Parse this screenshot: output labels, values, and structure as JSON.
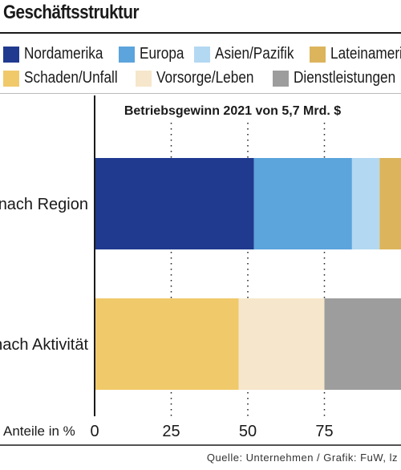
{
  "header": {
    "title": "Geschäftsstruktur"
  },
  "legend": {
    "row1": [
      {
        "label": "Nordamerika",
        "color": "#1f3a8f"
      },
      {
        "label": "Europa",
        "color": "#5ba4dc"
      },
      {
        "label": "Asien/Pazifik",
        "color": "#b3d8f2"
      },
      {
        "label": "Lateinamerika",
        "color": "#dbb45c"
      }
    ],
    "row2": [
      {
        "label": "Schaden/Unfall",
        "color": "#f0c96a"
      },
      {
        "label": "Vorsorge/Leben",
        "color": "#f6e6cb"
      },
      {
        "label": "Dienstleistungen",
        "color": "#9d9d9d"
      }
    ]
  },
  "chart_data": {
    "type": "bar",
    "orientation": "horizontal",
    "stacked": true,
    "title": "Betriebsgewinn 2021 von 5,7 Mrd. $",
    "xlabel": "Anteile in %",
    "xlim": [
      0,
      100
    ],
    "xticks": [
      0,
      25,
      50,
      75
    ],
    "grid": "dotted vertical at 25, 50, 75",
    "bars": [
      {
        "label": "nach Region",
        "segments": [
          {
            "name": "Nordamerika",
            "value": 52,
            "color": "#1f3a8f"
          },
          {
            "name": "Europa",
            "value": 32,
            "color": "#5ba4dc"
          },
          {
            "name": "Asien/Pazifik",
            "value": 9,
            "color": "#b3d8f2"
          },
          {
            "name": "Lateinamerika",
            "value": 7,
            "color": "#dbb45c"
          }
        ]
      },
      {
        "label": "nach Aktivität",
        "segments": [
          {
            "name": "Schaden/Unfall",
            "value": 47,
            "color": "#f0c96a"
          },
          {
            "name": "Vorsorge/Leben",
            "value": 28,
            "color": "#f6e6cb"
          },
          {
            "name": "Dienstleistungen",
            "value": 25,
            "color": "#9d9d9d"
          }
        ]
      }
    ]
  },
  "footer": {
    "source": "Quelle: Unternehmen / Grafik: FuW, lz"
  }
}
